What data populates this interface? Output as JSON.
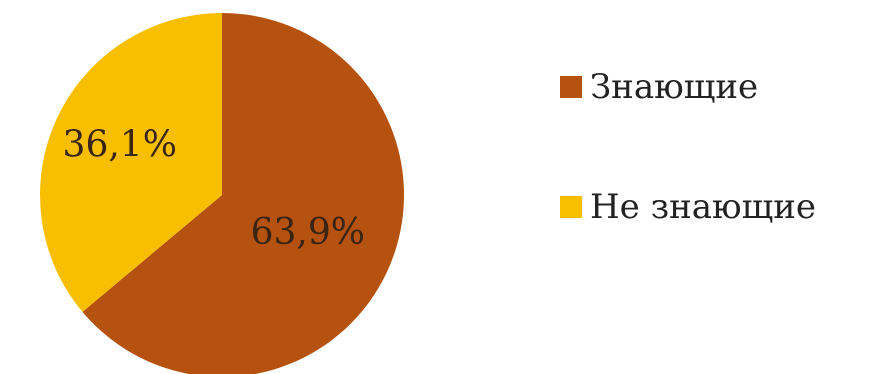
{
  "chart_data": {
    "type": "pie",
    "title": "",
    "series": [
      {
        "slices": [
          {
            "label": "Знающие",
            "value": 63.9,
            "display": "63,9%",
            "color": "#b5520f"
          },
          {
            "label": "Не знающие",
            "value": 36.1,
            "display": "36,1%",
            "color": "#f7bf00"
          }
        ]
      }
    ],
    "legend_position": "right",
    "start_angle_deg": 0,
    "direction": "clockwise"
  }
}
